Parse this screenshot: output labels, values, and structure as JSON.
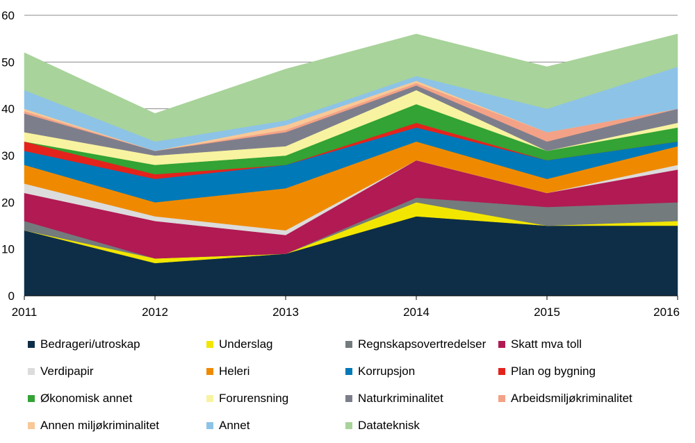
{
  "chart_data": {
    "type": "area",
    "stacked": true,
    "x": [
      "2011",
      "2012",
      "2013",
      "2014",
      "2015",
      "2016"
    ],
    "ylim": [
      0,
      60
    ],
    "yticks": [
      "0",
      "10",
      "20",
      "30",
      "40",
      "50",
      "60"
    ],
    "title": "",
    "xlabel": "",
    "ylabel": "",
    "grid": true,
    "legend_position": "bottom",
    "series": [
      {
        "name": "Bedrageri/utroskap",
        "color": "#0e2e48",
        "values": [
          14,
          7,
          9,
          17,
          15,
          15
        ]
      },
      {
        "name": "Underslag",
        "color": "#f2e600",
        "values": [
          0,
          1,
          0,
          3,
          0,
          1
        ]
      },
      {
        "name": "Regnskapsovertredelser",
        "color": "#737b7d",
        "values": [
          2,
          0,
          0,
          1,
          4,
          4
        ]
      },
      {
        "name": "Skatt mva toll",
        "color": "#b11a53",
        "values": [
          6,
          8,
          4,
          8,
          3,
          7
        ]
      },
      {
        "name": "Verdipapir",
        "color": "#dcdcdc",
        "values": [
          2,
          1,
          1,
          0,
          0,
          1
        ]
      },
      {
        "name": "Heleri",
        "color": "#ef8a00",
        "values": [
          4,
          3,
          9,
          4,
          3,
          4
        ]
      },
      {
        "name": "Korrupsjon",
        "color": "#0079b8",
        "values": [
          3,
          5,
          5,
          3,
          4,
          1
        ]
      },
      {
        "name": "Plan og bygning",
        "color": "#e3231c",
        "values": [
          2,
          1,
          0,
          1,
          0,
          0
        ]
      },
      {
        "name": "Økonomisk annet",
        "color": "#32a334",
        "values": [
          0,
          2,
          2,
          4,
          2,
          3
        ]
      },
      {
        "name": "Forurensning",
        "color": "#f8f3a0",
        "values": [
          2,
          2,
          2,
          3,
          0,
          1
        ]
      },
      {
        "name": "Naturkriminalitet",
        "color": "#7d7e8c",
        "values": [
          4,
          1,
          3,
          1,
          2,
          3
        ]
      },
      {
        "name": "Arbeidsmiljøkriminalitet",
        "color": "#f3a287",
        "values": [
          0.5,
          0,
          0.5,
          0.5,
          2,
          0
        ]
      },
      {
        "name": "Annen miljøkriminalitet",
        "color": "#f8c896",
        "values": [
          0.5,
          0,
          1,
          0.5,
          0,
          0
        ]
      },
      {
        "name": "Annet",
        "color": "#8dc3e7",
        "values": [
          4,
          2,
          1,
          1,
          5,
          9
        ]
      },
      {
        "name": "Datateknisk",
        "color": "#a8d39a",
        "values": [
          8,
          6,
          11,
          9,
          9,
          7
        ]
      }
    ]
  }
}
